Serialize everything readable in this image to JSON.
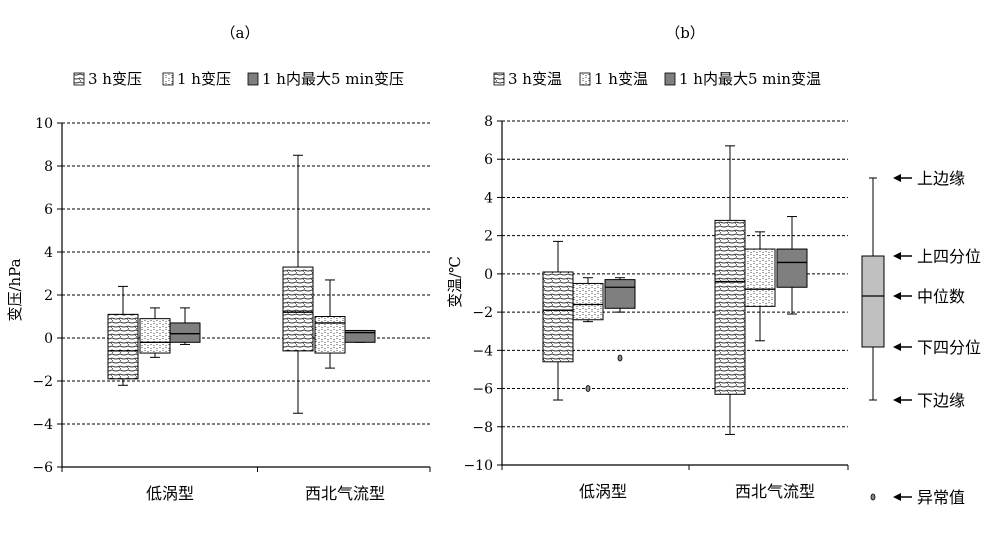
{
  "chart_data": [
    {
      "type": "box",
      "panel_label": "（a）",
      "ylabel": "变压/hPa",
      "ylim": [
        -6,
        10
      ],
      "yticks": [
        -6,
        -4,
        -2,
        0,
        2,
        4,
        6,
        8,
        10
      ],
      "ytick_labels": [
        "−6",
        "−4",
        "−2",
        "0",
        "2",
        "4",
        "6",
        "8",
        "10"
      ],
      "grid": true,
      "legend_position": "top",
      "categories": [
        "低涡型",
        "西北气流型"
      ],
      "series": [
        {
          "name": "3 h变压",
          "fill": "pattern-backslash",
          "boxes": [
            {
              "whisker_low": -2.2,
              "q1": -1.9,
              "median": -0.6,
              "q3": 1.1,
              "whisker_high": 2.4,
              "outliers": []
            },
            {
              "whisker_low": -3.5,
              "q1": -0.6,
              "median": 1.2,
              "q3": 3.3,
              "whisker_high": 8.5,
              "outliers": []
            }
          ]
        },
        {
          "name": "1 h变压",
          "fill": "pattern-dots",
          "boxes": [
            {
              "whisker_low": -0.9,
              "q1": -0.7,
              "median": -0.2,
              "q3": 0.9,
              "whisker_high": 1.4,
              "outliers": []
            },
            {
              "whisker_low": -1.4,
              "q1": -0.7,
              "median": 0.7,
              "q3": 1.0,
              "whisker_high": 2.7,
              "outliers": []
            }
          ]
        },
        {
          "name": "1 h内最大5 min变压",
          "fill": "solid-gray",
          "boxes": [
            {
              "whisker_low": -0.3,
              "q1": -0.2,
              "median": 0.2,
              "q3": 0.7,
              "whisker_high": 1.4,
              "outliers": []
            },
            {
              "whisker_low": -0.2,
              "q1": -0.2,
              "median": 0.25,
              "q3": 0.35,
              "whisker_high": 0.35,
              "outliers": []
            }
          ]
        }
      ]
    },
    {
      "type": "box",
      "panel_label": "（b）",
      "ylabel": "变温/℃",
      "ylim": [
        -10,
        8
      ],
      "yticks": [
        -10,
        -8,
        -6,
        -4,
        -2,
        0,
        2,
        4,
        6,
        8
      ],
      "ytick_labels": [
        "−10",
        "−8",
        "−6",
        "−4",
        "−2",
        "0",
        "2",
        "4",
        "6",
        "8"
      ],
      "grid": true,
      "legend_position": "top",
      "categories": [
        "低涡型",
        "西北气流型"
      ],
      "series": [
        {
          "name": "3 h变温",
          "fill": "pattern-backslash",
          "boxes": [
            {
              "whisker_low": -6.6,
              "q1": -4.6,
              "median": -1.9,
              "q3": 0.1,
              "whisker_high": 1.7,
              "outliers": []
            },
            {
              "whisker_low": -8.4,
              "q1": -6.3,
              "median": -0.4,
              "q3": 2.8,
              "whisker_high": 6.7,
              "outliers": []
            }
          ]
        },
        {
          "name": "1 h变温",
          "fill": "pattern-dots",
          "boxes": [
            {
              "whisker_low": -2.5,
              "q1": -2.4,
              "median": -1.6,
              "q3": -0.5,
              "whisker_high": -0.2,
              "outliers": [
                -6.0
              ]
            },
            {
              "whisker_low": -3.5,
              "q1": -1.7,
              "median": -0.8,
              "q3": 1.3,
              "whisker_high": 2.2,
              "outliers": []
            }
          ]
        },
        {
          "name": "1 h内最大5 min变温",
          "fill": "solid-gray",
          "boxes": [
            {
              "whisker_low": -2.0,
              "q1": -1.8,
              "median": -0.7,
              "q3": -0.3,
              "whisker_high": -0.2,
              "outliers": [
                -4.4
              ]
            },
            {
              "whisker_low": -2.1,
              "q1": -0.7,
              "median": 0.6,
              "q3": 1.3,
              "whisker_high": 3.0,
              "outliers": []
            }
          ]
        }
      ]
    }
  ],
  "key_legend": {
    "labels": [
      "上边缘",
      "上四分位",
      "中位数",
      "下四分位",
      "下边缘",
      "异常值"
    ],
    "arrow": "←"
  },
  "colors": {
    "solid_box": "#7f7f7f",
    "key_box": "#c0c0c0",
    "axis": "#000000",
    "grid": "#000000"
  }
}
